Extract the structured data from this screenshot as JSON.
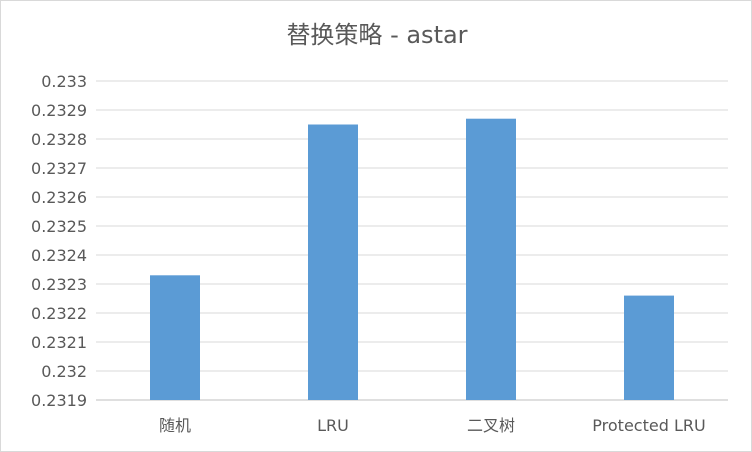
{
  "chart_data": {
    "type": "bar",
    "title": "替换策略 - astar",
    "xlabel": "",
    "ylabel": "",
    "categories": [
      "随机",
      "LRU",
      "二叉树",
      "Protected LRU"
    ],
    "values": [
      0.23233,
      0.23285,
      0.23287,
      0.23226
    ],
    "ylim": [
      0.2319,
      0.233
    ],
    "yticks": [
      "0.233",
      "0.2329",
      "0.2328",
      "0.2327",
      "0.2326",
      "0.2325",
      "0.2324",
      "0.2323",
      "0.2322",
      "0.2321",
      "0.232",
      "0.2319"
    ],
    "ytick_values": [
      0.233,
      0.2329,
      0.2328,
      0.2327,
      0.2326,
      0.2325,
      0.2324,
      0.2323,
      0.2322,
      0.2321,
      0.232,
      0.2319
    ],
    "grid": true,
    "legend": "none",
    "bar_color": "#5b9bd5"
  }
}
